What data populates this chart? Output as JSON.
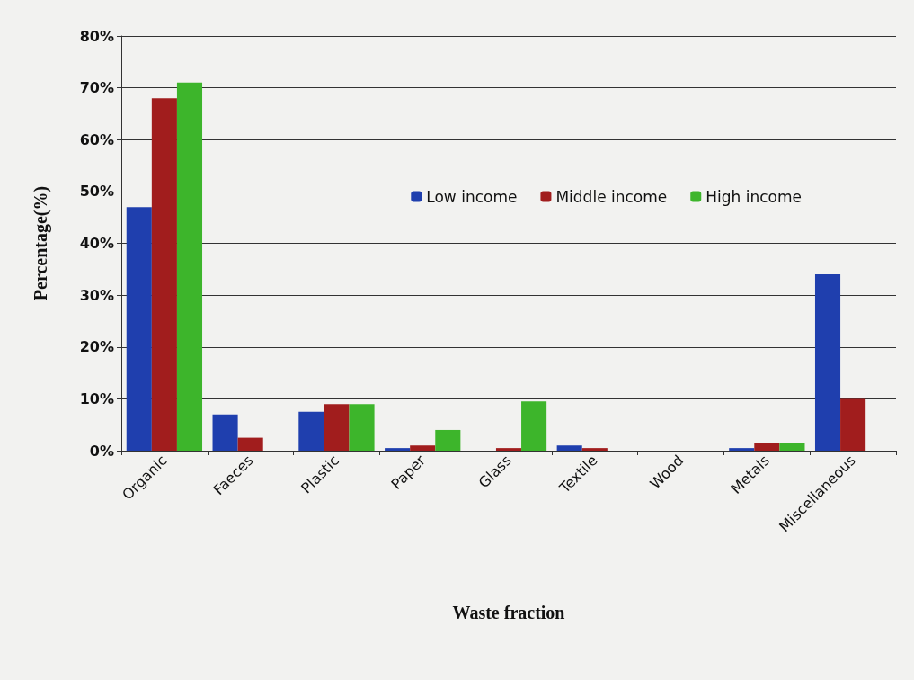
{
  "chart_data": {
    "type": "bar",
    "xlabel": "Waste fraction",
    "ylabel": "Percentage(%)",
    "categories": [
      "Organic",
      "Faeces",
      "Plastic",
      "Paper",
      "Glass",
      "Textile",
      "Wood",
      "Metals",
      "Miscellaneous"
    ],
    "series": [
      {
        "name": "Low income",
        "color": "#1f3fae",
        "values": [
          47,
          7,
          7.5,
          0.5,
          0,
          1,
          0,
          0.5,
          34
        ]
      },
      {
        "name": "Middle income",
        "color": "#a11d1d",
        "values": [
          68,
          2.5,
          9,
          1,
          0.5,
          0.5,
          0,
          1.5,
          10
        ]
      },
      {
        "name": "High income",
        "color": "#3db52b",
        "values": [
          71,
          0,
          9,
          4,
          9.5,
          0,
          0,
          1.5,
          0
        ]
      }
    ],
    "ylim": [
      0,
      80
    ],
    "yticks": [
      {
        "value": 0,
        "label": "0%"
      },
      {
        "value": 10,
        "label": "10%"
      },
      {
        "value": 20,
        "label": "20%"
      },
      {
        "value": 30,
        "label": "30%"
      },
      {
        "value": 40,
        "label": "40%"
      },
      {
        "value": 50,
        "label": "50%"
      },
      {
        "value": 60,
        "label": "60%"
      },
      {
        "value": 70,
        "label": "70%"
      },
      {
        "value": 80,
        "label": "80%"
      }
    ],
    "grid": "y",
    "legend": "right"
  }
}
